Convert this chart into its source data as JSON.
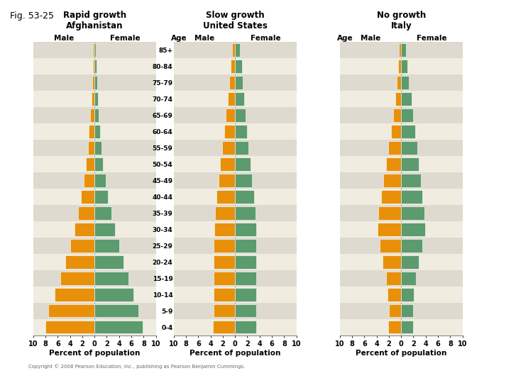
{
  "age_groups": [
    "0-4",
    "5-9",
    "10-14",
    "15-19",
    "20-24",
    "25-29",
    "30-34",
    "35-39",
    "40-44",
    "45-49",
    "50-54",
    "55-59",
    "60-64",
    "65-69",
    "70-74",
    "75-79",
    "80-84",
    "85+"
  ],
  "afghanistan_male": [
    8.0,
    7.5,
    6.5,
    5.6,
    4.8,
    4.0,
    3.3,
    2.7,
    2.2,
    1.8,
    1.4,
    1.1,
    0.9,
    0.7,
    0.5,
    0.4,
    0.3,
    0.2
  ],
  "afghanistan_female": [
    7.8,
    7.2,
    6.3,
    5.5,
    4.7,
    4.0,
    3.3,
    2.7,
    2.2,
    1.8,
    1.4,
    1.1,
    0.9,
    0.7,
    0.5,
    0.4,
    0.3,
    0.2
  ],
  "us_male": [
    3.6,
    3.5,
    3.5,
    3.5,
    3.5,
    3.5,
    3.4,
    3.3,
    3.0,
    2.7,
    2.4,
    2.1,
    1.8,
    1.5,
    1.2,
    0.9,
    0.7,
    0.5
  ],
  "us_female": [
    3.5,
    3.4,
    3.4,
    3.5,
    3.5,
    3.5,
    3.4,
    3.3,
    3.1,
    2.8,
    2.5,
    2.2,
    1.9,
    1.7,
    1.5,
    1.3,
    1.1,
    0.8
  ],
  "italy_male": [
    2.1,
    2.0,
    2.2,
    2.5,
    3.0,
    3.5,
    3.8,
    3.7,
    3.3,
    2.9,
    2.5,
    2.1,
    1.7,
    1.3,
    1.0,
    0.7,
    0.5,
    0.4
  ],
  "italy_female": [
    2.0,
    1.9,
    2.1,
    2.4,
    2.9,
    3.5,
    3.9,
    3.8,
    3.5,
    3.2,
    2.9,
    2.6,
    2.3,
    2.0,
    1.7,
    1.3,
    1.0,
    0.8
  ],
  "male_color": "#E8900A",
  "female_color": "#5C9B6E",
  "bg_color": "#F0EDE0",
  "stripe_light": "#F0EDE0",
  "stripe_dark": "#DEDAD0",
  "border_color": "#AAAAAA",
  "title1_line1": "Rapid growth",
  "title1_line2": "Afghanistan",
  "title2_line1": "Slow growth",
  "title2_line2": "United States",
  "title3_line1": "No growth",
  "title3_line2": "Italy",
  "xlabel": "Percent of population",
  "xlim": 10,
  "fig_title": "Fig. 53-25",
  "copyright": "Copyright © 2008 Pearson Education, Inc., publishing as Pearson Benjamin Cummings."
}
